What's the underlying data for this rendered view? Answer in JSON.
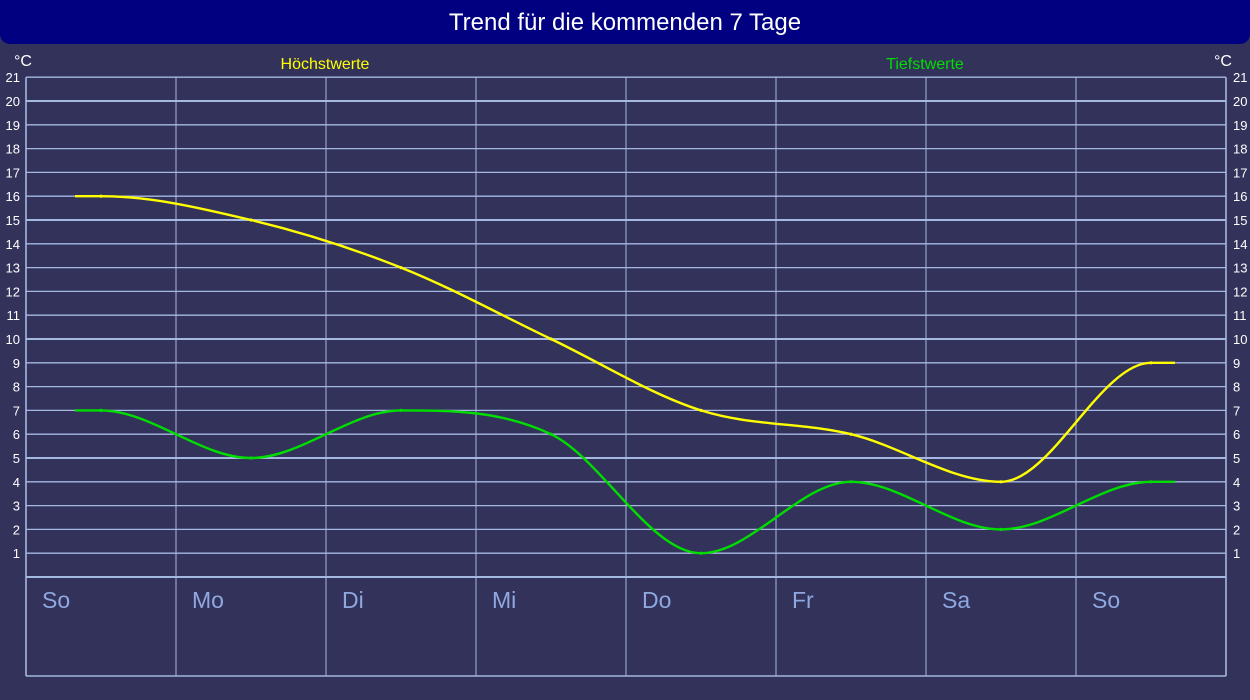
{
  "chart_data": {
    "type": "line",
    "title": "Trend für die kommenden 7 Tage",
    "unit": "°C",
    "categories": [
      "So",
      "Mo",
      "Di",
      "Mi",
      "Do",
      "Fr",
      "Sa",
      "So"
    ],
    "series": [
      {
        "name": "Höchstwerte",
        "color": "#ffff00",
        "values": [
          16,
          15,
          13,
          10,
          7,
          6,
          4,
          9
        ]
      },
      {
        "name": "Tiefstwerte",
        "color": "#00dd00",
        "values": [
          7,
          5,
          7,
          6,
          1,
          4,
          2,
          4
        ]
      }
    ],
    "ylim": [
      0,
      21
    ],
    "yticks": [
      1,
      2,
      3,
      4,
      5,
      6,
      7,
      8,
      9,
      10,
      11,
      12,
      13,
      14,
      15,
      16,
      17,
      18,
      19,
      20,
      21
    ],
    "grid": true,
    "colors": {
      "background": "#32325b",
      "header": "#000080",
      "grid": "#a4b8e0",
      "day_label": "#8fa9e0",
      "tick_label": "#ffffff"
    }
  }
}
